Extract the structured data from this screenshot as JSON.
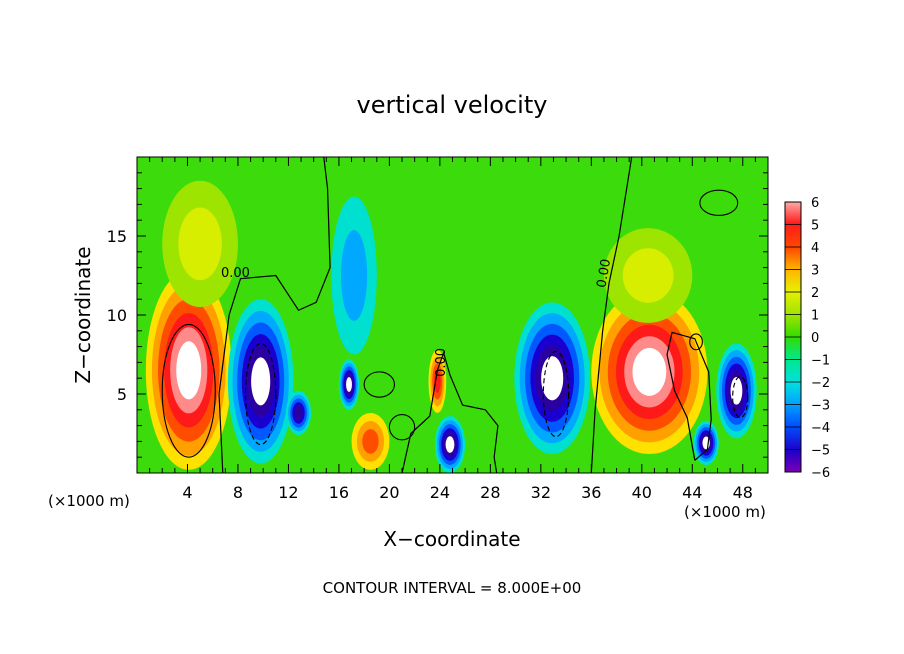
{
  "chart_data": {
    "type": "heatmap",
    "title": "vertical velocity",
    "xlabel": "X−coordinate",
    "ylabel": "Z−coordinate",
    "x_unit_left": "(×1000 m)",
    "x_unit_right": "(×1000 m)",
    "footer": "CONTOUR INTERVAL = 8.000E+00",
    "xlim": [
      0,
      50
    ],
    "ylim": [
      0,
      20
    ],
    "x_ticks": [
      4,
      8,
      12,
      16,
      20,
      24,
      28,
      32,
      36,
      40,
      44,
      48
    ],
    "y_ticks": [
      5,
      10,
      15
    ],
    "colorbar": {
      "range": [
        -6,
        6
      ],
      "ticks": [
        6,
        5,
        4,
        3,
        2,
        1,
        0,
        -1,
        -2,
        -3,
        -4,
        -5,
        -6
      ],
      "tick_labels": [
        "6",
        "5",
        "4",
        "3",
        "2",
        "1",
        "0",
        "−1",
        "−2",
        "−3",
        "−4",
        "−5",
        "−6"
      ]
    },
    "contour_labels": [
      {
        "text": "0.00",
        "x": 7.8,
        "z": 12.4
      },
      {
        "text": "0.00",
        "x": 37.3,
        "z": 12.6
      },
      {
        "text": "0.00",
        "x": 24.4,
        "z": 7.0
      }
    ],
    "grid": false,
    "updrafts": [
      {
        "x": 4.1,
        "z": 6.0,
        "peak": 7
      },
      {
        "x": 9.4,
        "z": 5.0,
        "peak": -7
      },
      {
        "x": 16.8,
        "z": 5.5,
        "peak": -6
      },
      {
        "x": 24.8,
        "z": 1.5,
        "peak": -6
      },
      {
        "x": 32.8,
        "z": 5.5,
        "peak": -7
      },
      {
        "x": 40.5,
        "z": 6.0,
        "peak": 7
      },
      {
        "x": 47.5,
        "z": 4.5,
        "peak": -6
      }
    ]
  }
}
